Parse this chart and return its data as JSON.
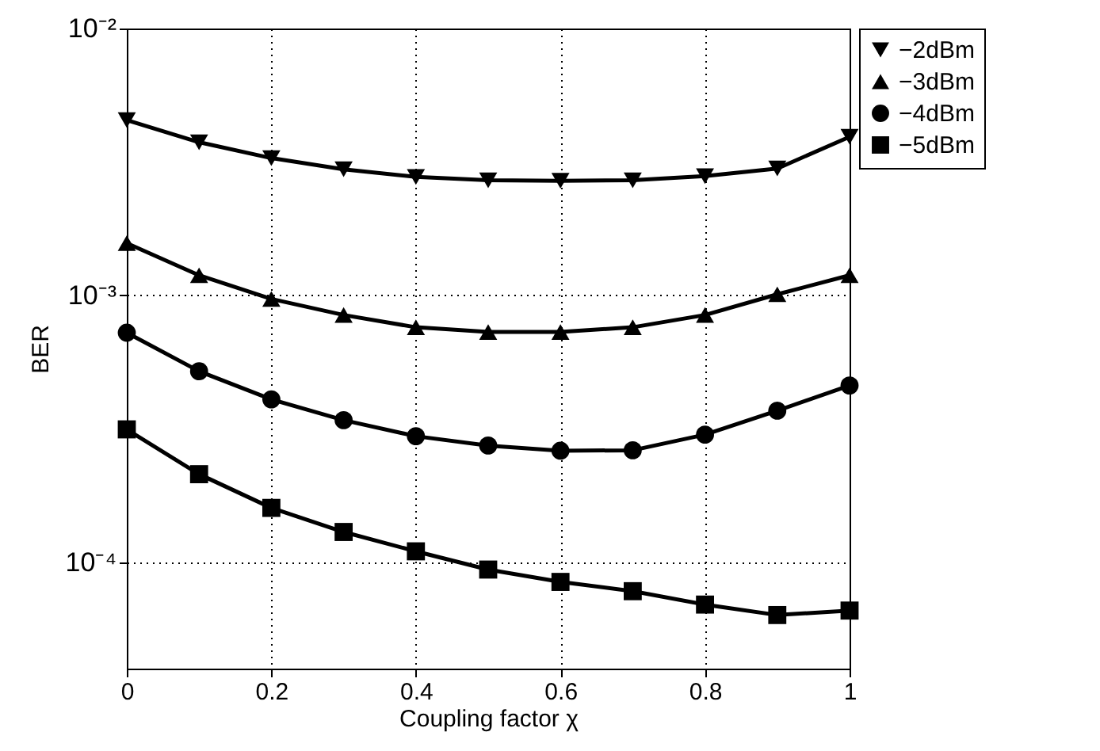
{
  "chart_data": {
    "type": "line",
    "xlabel": "Coupling factor χ",
    "ylabel": "BER",
    "x": [
      0,
      0.1,
      0.2,
      0.3,
      0.4,
      0.5,
      0.6,
      0.7,
      0.8,
      0.9,
      1
    ],
    "series": [
      {
        "name": "−2dBm",
        "color": "#000000",
        "marker": "triangle-down",
        "values": [
          0.00454,
          0.00375,
          0.00327,
          0.00297,
          0.00278,
          0.0027,
          0.00269,
          0.0027,
          0.0028,
          0.00299,
          0.00393
        ]
      },
      {
        "name": "−3dBm",
        "color": "#000000",
        "marker": "triangle-up",
        "values": [
          0.00157,
          0.00119,
          0.00097,
          0.000845,
          0.00076,
          0.00073,
          0.00073,
          0.00076,
          0.000845,
          0.00101,
          0.00119
        ]
      },
      {
        "name": "−4dBm",
        "color": "#000000",
        "marker": "circle",
        "values": [
          0.000725,
          0.00052,
          0.000408,
          0.000341,
          0.000297,
          0.000274,
          0.000262,
          0.000263,
          0.000301,
          0.00037,
          0.00046
        ]
      },
      {
        "name": "−5dBm",
        "color": "#000000",
        "marker": "square",
        "values": [
          0.000315,
          0.000214,
          0.00016,
          0.00013,
          0.00011,
          9.4e-05,
          8.45e-05,
          7.8e-05,
          6.95e-05,
          6.35e-05,
          6.6e-05
        ]
      }
    ],
    "log": "y",
    "xlim": [
      0,
      1
    ],
    "ylim": [
      4e-05,
      0.01
    ],
    "xticks": [
      0,
      0.2,
      0.4,
      0.6,
      0.8,
      1
    ],
    "yticks": [
      {
        "value": 0.0001,
        "label": "10⁻⁴"
      },
      {
        "value": 0.001,
        "label": "10⁻³"
      },
      {
        "value": 0.01,
        "label": "10⁻²"
      }
    ],
    "grid": true,
    "legend": "right",
    "line_style": "solid"
  }
}
